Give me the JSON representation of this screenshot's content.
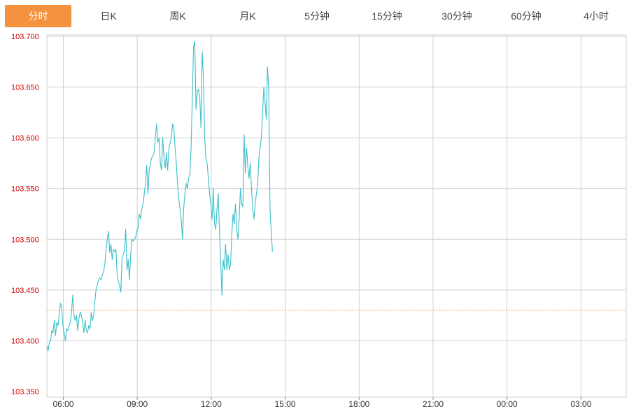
{
  "tabs": [
    {
      "label": "分时",
      "active": true
    },
    {
      "label": "日K",
      "active": false
    },
    {
      "label": "周K",
      "active": false
    },
    {
      "label": "月K",
      "active": false
    },
    {
      "label": "5分钟",
      "active": false
    },
    {
      "label": "15分钟",
      "active": false
    },
    {
      "label": "30分钟",
      "active": false
    },
    {
      "label": "60分钟",
      "active": false
    },
    {
      "label": "4小时",
      "active": false
    }
  ],
  "colors": {
    "line": "#3bbfca",
    "reference": "#e8a46e",
    "grid": "#d0d0d0",
    "ytick": "#cc0000",
    "active_tab": "#f5923e"
  },
  "chart_data": {
    "type": "line",
    "ylim": [
      103.35,
      103.7
    ],
    "y_ticks": [
      "103.350",
      "103.400",
      "103.450",
      "103.500",
      "103.550",
      "103.600",
      "103.650",
      "103.700"
    ],
    "x_ticks": [
      "06:00",
      "09:00",
      "12:00",
      "15:00",
      "18:00",
      "21:00",
      "00:00",
      "03:00"
    ],
    "x_range": [
      "05:20",
      "04:50"
    ],
    "reference_line": 103.43,
    "grid": true,
    "series": [
      {
        "values": [
          [
            "05:20",
            103.395
          ],
          [
            "05:23",
            103.39
          ],
          [
            "05:26",
            103.398
          ],
          [
            "05:29",
            103.4
          ],
          [
            "05:32",
            103.41
          ],
          [
            "05:35",
            103.408
          ],
          [
            "05:38",
            103.42
          ],
          [
            "05:41",
            103.405
          ],
          [
            "05:44",
            103.418
          ],
          [
            "05:47",
            103.415
          ],
          [
            "05:50",
            103.425
          ],
          [
            "05:53",
            103.437
          ],
          [
            "05:56",
            103.433
          ],
          [
            "05:59",
            103.415
          ],
          [
            "06:02",
            103.408
          ],
          [
            "06:05",
            103.4
          ],
          [
            "06:08",
            103.412
          ],
          [
            "06:11",
            103.41
          ],
          [
            "06:14",
            103.415
          ],
          [
            "06:17",
            103.418
          ],
          [
            "06:20",
            103.428
          ],
          [
            "06:23",
            103.445
          ],
          [
            "06:26",
            103.425
          ],
          [
            "06:29",
            103.42
          ],
          [
            "06:32",
            103.425
          ],
          [
            "06:35",
            103.41
          ],
          [
            "06:38",
            103.422
          ],
          [
            "06:41",
            103.428
          ],
          [
            "06:44",
            103.425
          ],
          [
            "06:47",
            103.418
          ],
          [
            "06:50",
            103.408
          ],
          [
            "06:53",
            103.42
          ],
          [
            "06:56",
            103.41
          ],
          [
            "06:59",
            103.408
          ],
          [
            "07:02",
            103.415
          ],
          [
            "07:05",
            103.412
          ],
          [
            "07:08",
            103.428
          ],
          [
            "07:11",
            103.42
          ],
          [
            "07:14",
            103.425
          ],
          [
            "07:17",
            103.44
          ],
          [
            "07:20",
            103.452
          ],
          [
            "07:23",
            103.455
          ],
          [
            "07:26",
            103.46
          ],
          [
            "07:29",
            103.462
          ],
          [
            "07:32",
            103.46
          ],
          [
            "07:35",
            103.465
          ],
          [
            "07:38",
            103.468
          ],
          [
            "07:41",
            103.475
          ],
          [
            "07:44",
            103.49
          ],
          [
            "07:47",
            103.5
          ],
          [
            "07:50",
            103.508
          ],
          [
            "07:53",
            103.487
          ],
          [
            "07:56",
            103.495
          ],
          [
            "07:59",
            103.48
          ],
          [
            "08:02",
            103.49
          ],
          [
            "08:05",
            103.488
          ],
          [
            "08:08",
            103.49
          ],
          [
            "08:11",
            103.465
          ],
          [
            "08:14",
            103.458
          ],
          [
            "08:17",
            103.455
          ],
          [
            "08:20",
            103.448
          ],
          [
            "08:23",
            103.483
          ],
          [
            "08:26",
            103.485
          ],
          [
            "08:29",
            103.49
          ],
          [
            "08:32",
            103.51
          ],
          [
            "08:35",
            103.47
          ],
          [
            "08:38",
            103.48
          ],
          [
            "08:41",
            103.46
          ],
          [
            "08:44",
            103.485
          ],
          [
            "08:47",
            103.5
          ],
          [
            "08:50",
            103.498
          ],
          [
            "08:53",
            103.5
          ],
          [
            "08:56",
            103.502
          ],
          [
            "08:59",
            103.508
          ],
          [
            "09:02",
            103.512
          ],
          [
            "09:05",
            103.525
          ],
          [
            "09:08",
            103.52
          ],
          [
            "09:11",
            103.53
          ],
          [
            "09:14",
            103.535
          ],
          [
            "09:17",
            103.545
          ],
          [
            "09:20",
            103.555
          ],
          [
            "09:23",
            103.573
          ],
          [
            "09:26",
            103.545
          ],
          [
            "09:29",
            103.568
          ],
          [
            "09:32",
            103.575
          ],
          [
            "09:35",
            103.58
          ],
          [
            "09:38",
            103.582
          ],
          [
            "09:41",
            103.585
          ],
          [
            "09:44",
            103.6
          ],
          [
            "09:47",
            103.614
          ],
          [
            "09:50",
            103.595
          ],
          [
            "09:53",
            103.6
          ],
          [
            "09:56",
            103.575
          ],
          [
            "09:59",
            103.568
          ],
          [
            "10:02",
            103.6
          ],
          [
            "10:05",
            103.58
          ],
          [
            "10:08",
            103.57
          ],
          [
            "10:11",
            103.585
          ],
          [
            "10:14",
            103.568
          ],
          [
            "10:17",
            103.59
          ],
          [
            "10:20",
            103.595
          ],
          [
            "10:23",
            103.6
          ],
          [
            "10:26",
            103.614
          ],
          [
            "10:29",
            103.61
          ],
          [
            "10:32",
            103.59
          ],
          [
            "10:35",
            103.575
          ],
          [
            "10:38",
            103.555
          ],
          [
            "10:41",
            103.54
          ],
          [
            "10:44",
            103.53
          ],
          [
            "10:47",
            103.52
          ],
          [
            "10:50",
            103.5
          ],
          [
            "10:53",
            103.53
          ],
          [
            "10:56",
            103.545
          ],
          [
            "10:59",
            103.555
          ],
          [
            "11:02",
            103.55
          ],
          [
            "11:05",
            103.56
          ],
          [
            "11:08",
            103.565
          ],
          [
            "11:11",
            103.59
          ],
          [
            "11:14",
            103.64
          ],
          [
            "11:17",
            103.69
          ],
          [
            "11:20",
            103.695
          ],
          [
            "11:23",
            103.628
          ],
          [
            "11:26",
            103.645
          ],
          [
            "11:29",
            103.648
          ],
          [
            "11:32",
            103.64
          ],
          [
            "11:35",
            103.61
          ],
          [
            "11:38",
            103.685
          ],
          [
            "11:41",
            103.66
          ],
          [
            "11:44",
            103.6
          ],
          [
            "11:47",
            103.58
          ],
          [
            "11:50",
            103.575
          ],
          [
            "11:53",
            103.56
          ],
          [
            "11:56",
            103.545
          ],
          [
            "11:59",
            103.535
          ],
          [
            "12:02",
            103.52
          ],
          [
            "12:05",
            103.55
          ],
          [
            "12:08",
            103.515
          ],
          [
            "12:11",
            103.51
          ],
          [
            "12:14",
            103.53
          ],
          [
            "12:17",
            103.545
          ],
          [
            "12:20",
            103.51
          ],
          [
            "12:23",
            103.478
          ],
          [
            "12:26",
            103.445
          ],
          [
            "12:29",
            103.48
          ],
          [
            "12:32",
            103.47
          ],
          [
            "12:35",
            103.495
          ],
          [
            "12:38",
            103.47
          ],
          [
            "12:41",
            103.485
          ],
          [
            "12:44",
            103.47
          ],
          [
            "12:47",
            103.475
          ],
          [
            "12:50",
            103.505
          ],
          [
            "12:53",
            103.525
          ],
          [
            "12:56",
            103.515
          ],
          [
            "12:59",
            103.535
          ],
          [
            "13:02",
            103.51
          ],
          [
            "13:05",
            103.5
          ],
          [
            "13:08",
            103.52
          ],
          [
            "13:11",
            103.55
          ],
          [
            "13:14",
            103.535
          ],
          [
            "13:17",
            103.532
          ],
          [
            "13:20",
            103.603
          ],
          [
            "13:23",
            103.565
          ],
          [
            "13:26",
            103.59
          ],
          [
            "13:29",
            103.572
          ],
          [
            "13:32",
            103.56
          ],
          [
            "13:35",
            103.575
          ],
          [
            "13:38",
            103.55
          ],
          [
            "13:41",
            103.53
          ],
          [
            "13:44",
            103.52
          ],
          [
            "13:47",
            103.535
          ],
          [
            "13:50",
            103.545
          ],
          [
            "13:53",
            103.555
          ],
          [
            "13:56",
            103.58
          ],
          [
            "13:59",
            103.59
          ],
          [
            "14:02",
            103.6
          ],
          [
            "14:05",
            103.625
          ],
          [
            "14:08",
            103.65
          ],
          [
            "14:11",
            103.635
          ],
          [
            "14:14",
            103.618
          ],
          [
            "14:17",
            103.67
          ],
          [
            "14:20",
            103.648
          ],
          [
            "14:23",
            103.53
          ],
          [
            "14:26",
            103.508
          ],
          [
            "14:29",
            103.488
          ]
        ]
      }
    ]
  }
}
